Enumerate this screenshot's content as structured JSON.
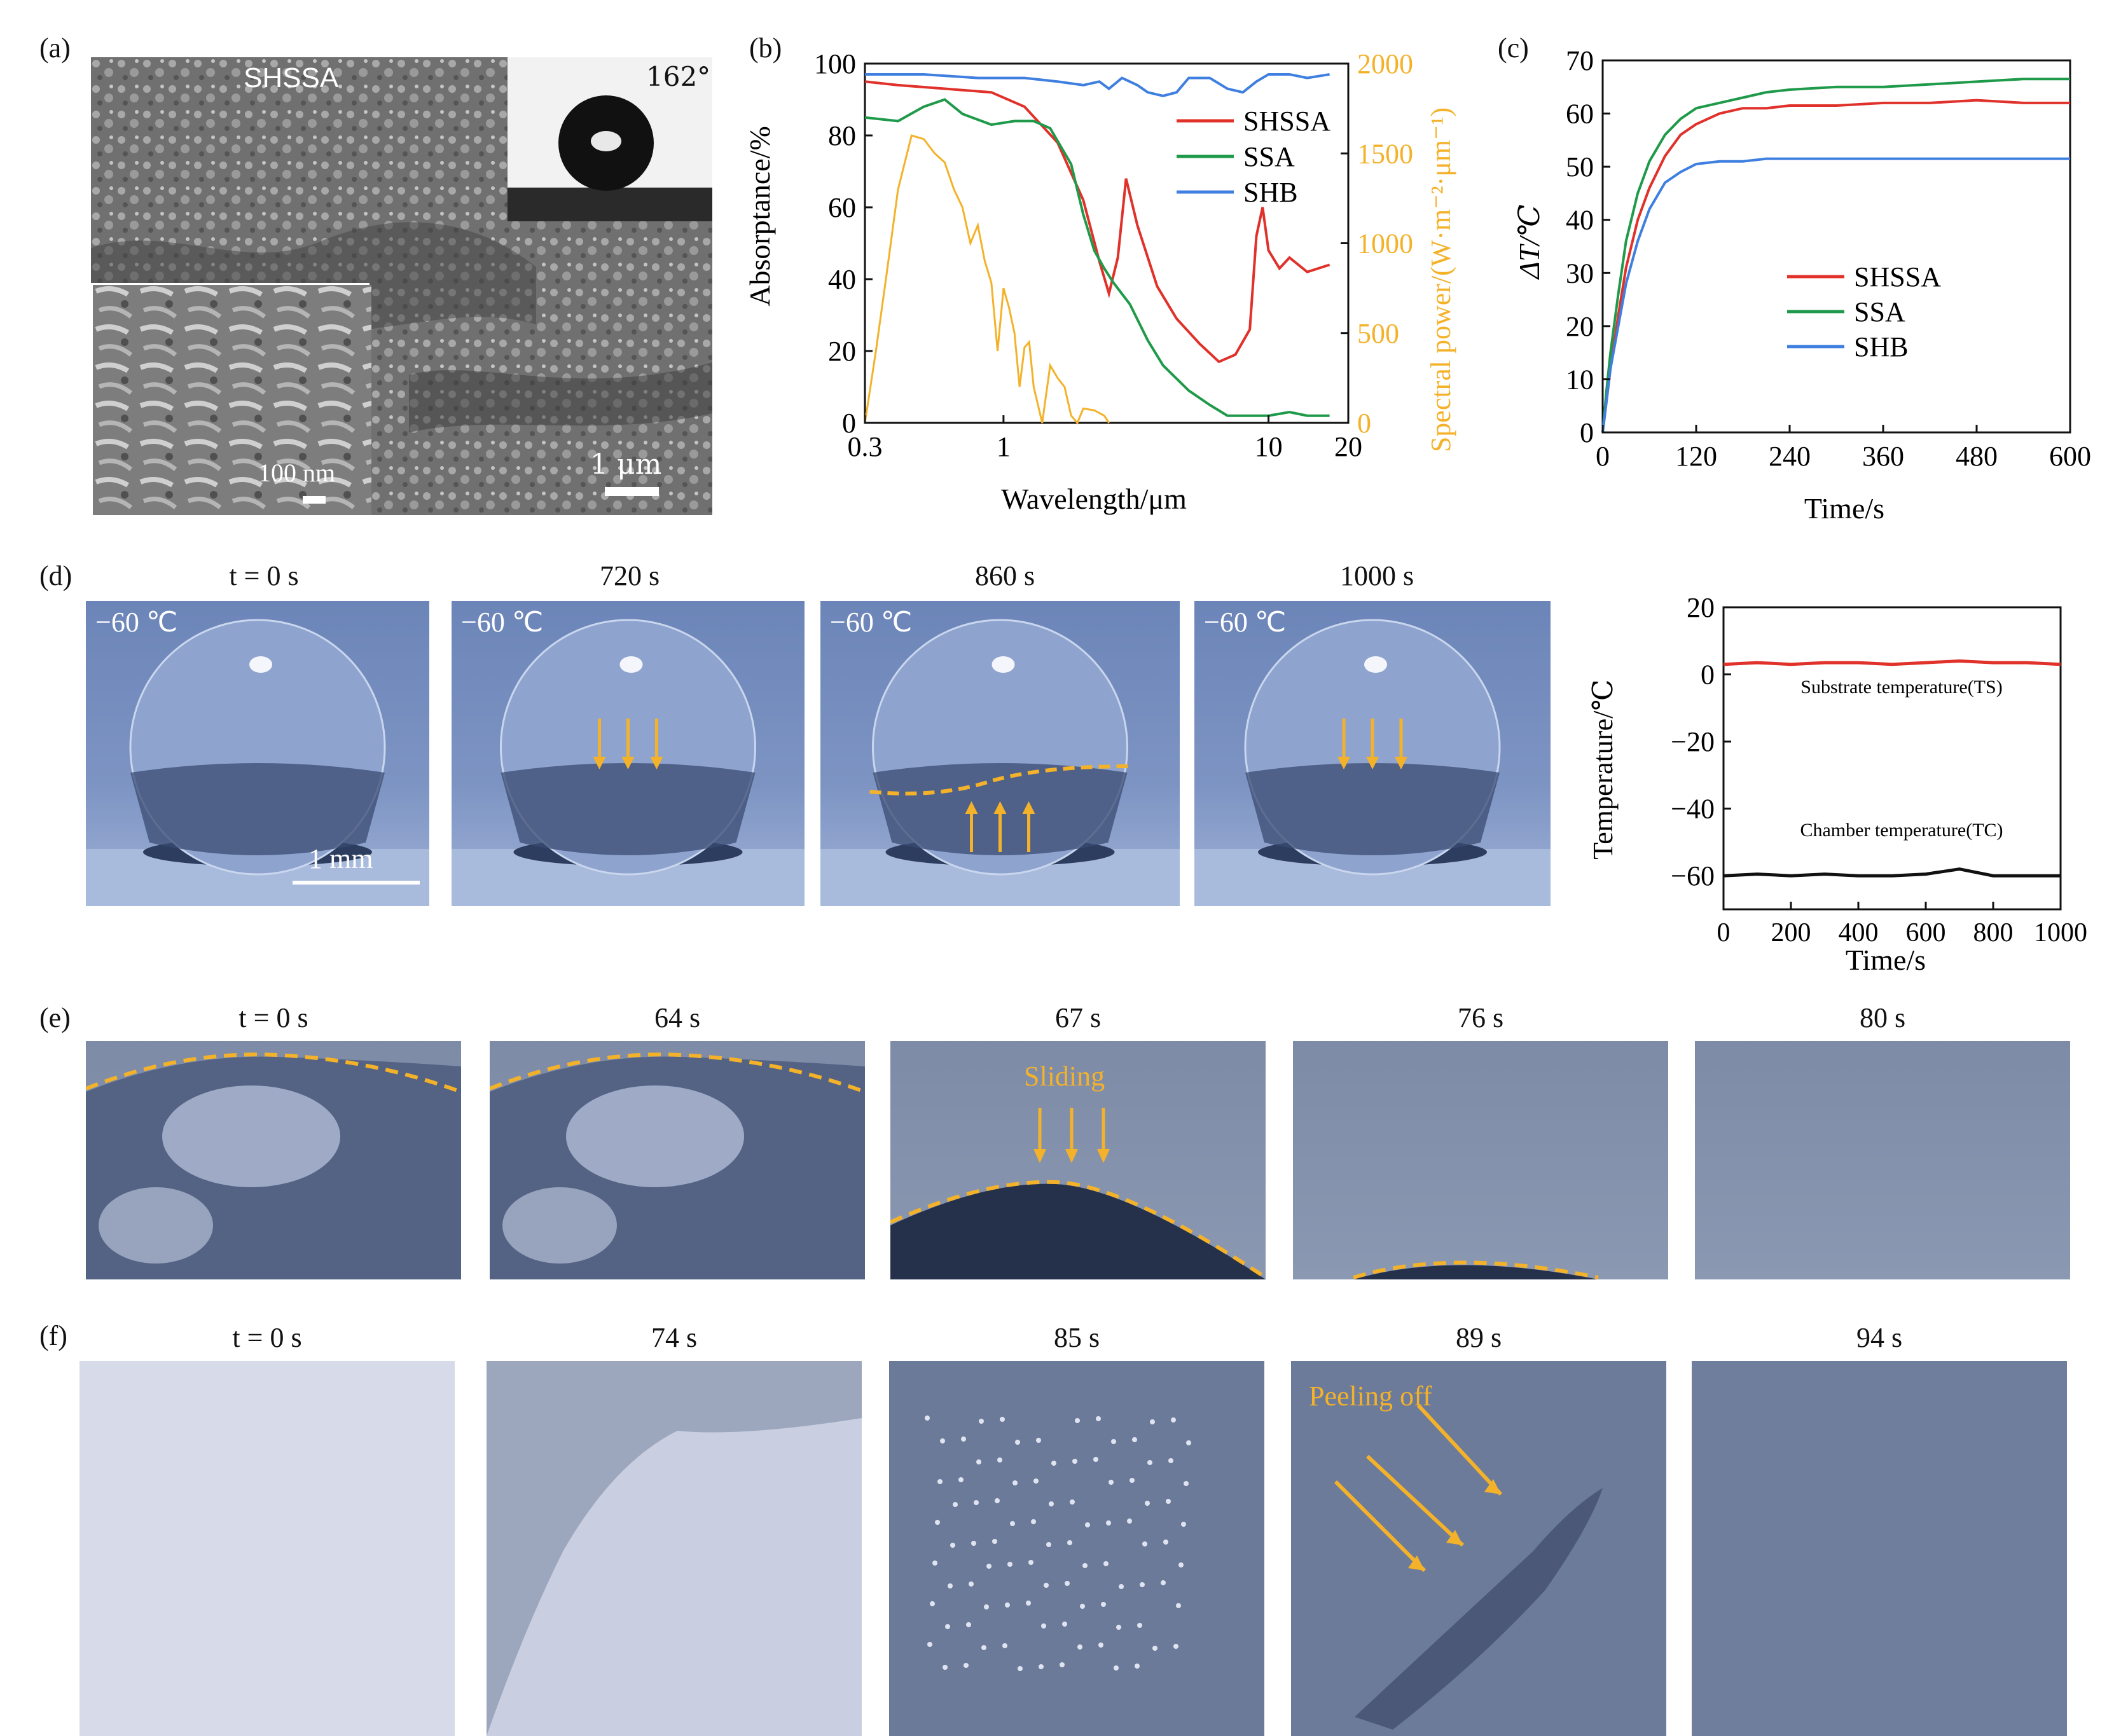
{
  "panel_labels": [
    "(a)",
    "(b)",
    "(c)",
    "(d)",
    "(e)",
    "(f)"
  ],
  "panel_a": {
    "sample_label": "SHSSA",
    "contact_angle": "162°",
    "inset_scale": "100 nm",
    "main_scale": "1 μm"
  },
  "panel_d": {
    "captions": [
      "t = 0 s",
      "720 s",
      "860 s",
      "1000 s"
    ],
    "temperature_label": "−60 ℃",
    "scale_bar": "1 mm"
  },
  "panel_e": {
    "captions": [
      "t = 0 s",
      "64 s",
      "67 s",
      "76 s",
      "80 s"
    ],
    "annotation": "Sliding"
  },
  "panel_f": {
    "captions": [
      "t = 0 s",
      "74 s",
      "85 s",
      "89 s",
      "94 s"
    ],
    "annotation": "Peeling off"
  },
  "colors": {
    "shssa": "#e0312a",
    "ssa": "#1f9a4a",
    "shb": "#3f7fe0",
    "solar": "#f4b22a",
    "annotation": "#f4b22a",
    "black_line": "#111111"
  },
  "chart_data": [
    {
      "id": "b",
      "type": "line",
      "xlabel": "Wavelength/μm",
      "ylabel": "Absorptance/%",
      "y2label": "Spectral power/(W·m⁻²·μm⁻¹)",
      "x_scale": "log",
      "xlim": [
        0.3,
        20
      ],
      "ylim": [
        0,
        100
      ],
      "y2lim": [
        0,
        2000
      ],
      "xticks": [
        "0.3",
        "1",
        "10",
        "20"
      ],
      "yticks": [
        "0",
        "20",
        "40",
        "60",
        "80",
        "100"
      ],
      "y2ticks": [
        "0",
        "500",
        "1000",
        "1500",
        "2000"
      ],
      "legend": [
        "SHSSA",
        "SSA",
        "SHB"
      ],
      "legend_position": "top-right",
      "series": [
        {
          "name": "SHSSA",
          "x": [
            0.3,
            0.4,
            0.6,
            0.9,
            1.2,
            1.6,
            2.0,
            2.3,
            2.5,
            2.7,
            2.9,
            3.2,
            3.8,
            4.5,
            5.5,
            6.5,
            7.5,
            8.5,
            9.0,
            9.5,
            10,
            11,
            12,
            14,
            17
          ],
          "y": [
            95,
            94,
            93,
            92,
            88,
            78,
            62,
            45,
            36,
            46,
            68,
            55,
            38,
            29,
            22,
            17,
            19,
            26,
            52,
            60,
            48,
            43,
            46,
            42,
            44
          ]
        },
        {
          "name": "SSA",
          "x": [
            0.3,
            0.4,
            0.5,
            0.6,
            0.7,
            0.9,
            1.1,
            1.3,
            1.5,
            1.8,
            2.0,
            2.2,
            2.4,
            2.6,
            3.0,
            3.5,
            4.0,
            5.0,
            6.0,
            7.0,
            8.0,
            10,
            12,
            14,
            17
          ],
          "y": [
            85,
            84,
            88,
            90,
            86,
            83,
            84,
            84,
            82,
            72,
            58,
            48,
            43,
            39,
            33,
            23,
            16,
            9,
            5,
            2,
            2,
            2,
            3,
            2,
            2
          ]
        },
        {
          "name": "SHB",
          "x": [
            0.3,
            0.5,
            0.8,
            1.2,
            1.6,
            2.0,
            2.3,
            2.5,
            2.8,
            3.2,
            3.5,
            4.0,
            4.5,
            5.0,
            6.0,
            7.0,
            8.0,
            9.0,
            10,
            12,
            14,
            17
          ],
          "y": [
            97,
            97,
            96,
            96,
            95,
            94,
            95,
            93,
            96,
            94,
            92,
            91,
            92,
            96,
            96,
            93,
            92,
            95,
            97,
            97,
            96,
            97
          ]
        }
      ],
      "solar_spectrum": {
        "name": "Solar spectral power",
        "x": [
          0.3,
          0.33,
          0.36,
          0.4,
          0.45,
          0.5,
          0.55,
          0.6,
          0.65,
          0.7,
          0.75,
          0.8,
          0.85,
          0.9,
          0.95,
          1.0,
          1.05,
          1.1,
          1.15,
          1.2,
          1.25,
          1.3,
          1.4,
          1.5,
          1.6,
          1.7,
          1.8,
          1.9,
          2.0,
          2.2,
          2.4,
          2.5
        ],
        "y": [
          0,
          400,
          800,
          1300,
          1600,
          1580,
          1500,
          1450,
          1300,
          1200,
          1000,
          1100,
          900,
          780,
          400,
          750,
          640,
          500,
          200,
          420,
          450,
          200,
          0,
          320,
          250,
          200,
          40,
          0,
          80,
          70,
          40,
          0
        ]
      }
    },
    {
      "id": "c",
      "type": "line",
      "xlabel": "Time/s",
      "ylabel": "ΔT/℃",
      "xlim": [
        0,
        600
      ],
      "ylim": [
        0,
        70
      ],
      "xticks": [
        "0",
        "120",
        "240",
        "360",
        "480",
        "600"
      ],
      "yticks": [
        "0",
        "10",
        "20",
        "30",
        "40",
        "50",
        "60",
        "70"
      ],
      "legend": [
        "SHSSA",
        "SSA",
        "SHB"
      ],
      "legend_position": "center-right",
      "series": [
        {
          "name": "SHSSA",
          "x": [
            0,
            5,
            10,
            20,
            30,
            45,
            60,
            80,
            100,
            120,
            150,
            180,
            210,
            240,
            300,
            360,
            420,
            480,
            540,
            600
          ],
          "y": [
            0,
            6,
            12,
            22,
            31,
            40,
            46,
            52,
            56,
            58,
            60,
            61,
            61,
            61.5,
            61.5,
            62,
            62,
            62.5,
            62,
            62
          ]
        },
        {
          "name": "SSA",
          "x": [
            0,
            5,
            10,
            20,
            30,
            45,
            60,
            80,
            100,
            120,
            150,
            180,
            210,
            240,
            300,
            360,
            420,
            480,
            540,
            600
          ],
          "y": [
            0,
            8,
            15,
            26,
            36,
            45,
            51,
            56,
            59,
            61,
            62,
            63,
            64,
            64.5,
            65,
            65,
            65.5,
            66,
            66.5,
            66.5
          ]
        },
        {
          "name": "SHB",
          "x": [
            0,
            5,
            10,
            20,
            30,
            45,
            60,
            80,
            100,
            120,
            150,
            180,
            210,
            240,
            300,
            360,
            420,
            480,
            540,
            600
          ],
          "y": [
            0,
            6,
            12,
            20,
            28,
            36,
            42,
            47,
            49,
            50.5,
            51,
            51,
            51.5,
            51.5,
            51.5,
            51.5,
            51.5,
            51.5,
            51.5,
            51.5
          ]
        }
      ]
    },
    {
      "id": "d-chart",
      "type": "line",
      "xlabel": "Time/s",
      "ylabel": "Temperature/℃",
      "xlim": [
        0,
        1000
      ],
      "ylim": [
        -70,
        20
      ],
      "xticks": [
        "0",
        "200",
        "400",
        "600",
        "800",
        "1000"
      ],
      "yticks": [
        "20",
        "0",
        "−20",
        "−40",
        "−60"
      ],
      "series": [
        {
          "name": "Substrate temperature(TS)",
          "x": [
            0,
            100,
            200,
            300,
            400,
            500,
            600,
            700,
            800,
            900,
            1000
          ],
          "y": [
            3,
            3.5,
            3,
            3.5,
            3.5,
            3,
            3.5,
            4,
            3.5,
            3.5,
            3
          ]
        },
        {
          "name": "Chamber temperature(TC)",
          "x": [
            0,
            100,
            200,
            300,
            400,
            500,
            600,
            700,
            800,
            900,
            1000
          ],
          "y": [
            -60,
            -59.5,
            -60,
            -59.5,
            -60,
            -60,
            -59.5,
            -58,
            -60,
            -60,
            -60
          ]
        }
      ],
      "annotations": [
        "Substrate temperature(TS)",
        "Chamber temperature(TC)"
      ]
    }
  ]
}
